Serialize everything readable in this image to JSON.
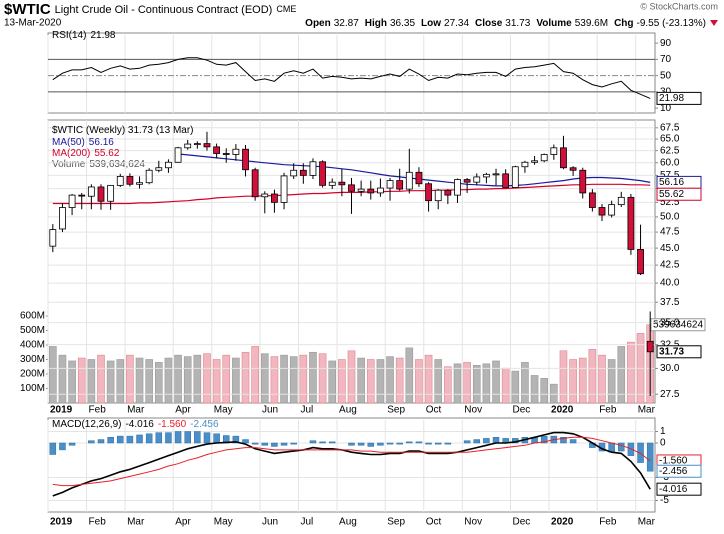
{
  "header": {
    "symbol": "$WTIC",
    "name": "Light Crude Oil - Continuous Contract (EOD)",
    "exchange": "CME",
    "date": "13-Mar-2020",
    "credit": "© StockCharts.com",
    "stats": [
      {
        "label": "Open",
        "value": "32.87"
      },
      {
        "label": "High",
        "value": "36.35"
      },
      {
        "label": "Low",
        "value": "27.34"
      },
      {
        "label": "Close",
        "value": "31.73"
      },
      {
        "label": "Volume",
        "value": "539.6M"
      },
      {
        "label": "Chg",
        "value": "-9.55 (-23.13%)"
      }
    ]
  },
  "chart_data": [
    {
      "type": "line",
      "name": "RSI(14)",
      "color": "#000000",
      "ylim": [
        4,
        100
      ],
      "yticks": [
        10,
        30,
        50,
        70,
        90
      ],
      "bands": [
        30,
        70
      ],
      "midline": 50,
      "values": [
        45,
        53,
        57,
        57,
        60,
        54,
        59,
        62,
        58,
        59,
        63,
        64,
        66,
        70,
        72,
        72,
        69,
        64,
        63,
        66,
        55,
        44,
        46,
        43,
        53,
        56,
        53,
        58,
        47,
        49,
        48,
        46,
        47,
        46,
        49,
        52,
        49,
        58,
        52,
        44,
        48,
        47,
        52,
        51,
        53,
        54,
        54,
        49,
        58,
        60,
        61,
        63,
        65,
        55,
        53,
        45,
        39,
        36,
        40,
        43,
        32,
        27,
        21.98
      ]
    },
    {
      "type": "candlestick",
      "legend_title": "$WTIC (Weekly) 31.73 (13 Mar)",
      "log": true,
      "grid": true,
      "up_color": "#ffffff",
      "down_color": "#d0103a",
      "ylim": [
        26.7,
        69.3
      ],
      "yticks": [
        27.5,
        {
          "value": 30,
          "label": "30.0"
        },
        32.5,
        {
          "value": 35,
          "label": "35.0"
        },
        37.5,
        {
          "value": 40,
          "label": "40.0"
        },
        42.5,
        {
          "value": 45,
          "label": "45.0"
        },
        47.5,
        {
          "value": 50,
          "label": "50.0"
        },
        52.5,
        {
          "value": 55,
          "label": "55.0"
        },
        57.5,
        {
          "value": 60,
          "label": "60.0"
        },
        62.5,
        {
          "value": 65,
          "label": "65.0"
        },
        67.5
      ],
      "categories": [
        "2019",
        null,
        null,
        null,
        "Feb",
        null,
        null,
        null,
        "Mar",
        null,
        null,
        null,
        null,
        "Apr",
        null,
        null,
        null,
        "May",
        null,
        null,
        null,
        null,
        "Jun",
        null,
        null,
        null,
        "Jul",
        null,
        null,
        null,
        "Aug",
        null,
        null,
        null,
        null,
        "Sep",
        null,
        null,
        null,
        "Oct",
        null,
        null,
        null,
        "Nov",
        null,
        null,
        null,
        null,
        "Dec",
        null,
        null,
        null,
        "2020",
        null,
        null,
        null,
        null,
        "Feb",
        null,
        null,
        null,
        "Mar",
        null
      ],
      "open": [
        45.3,
        48.0,
        51.6,
        53.8,
        53.6,
        55.3,
        52.7,
        55.6,
        57.3,
        55.8,
        56.1,
        58.5,
        59.0,
        60.1,
        63.1,
        63.9,
        64.0,
        63.3,
        61.9,
        61.7,
        62.8,
        58.6,
        53.5,
        54.0,
        52.5,
        57.4,
        58.5,
        57.5,
        60.2,
        55.6,
        56.2,
        55.7,
        54.5,
        54.9,
        54.2,
        55.1,
        56.5,
        54.9,
        58.1,
        55.9,
        52.8,
        54.7,
        53.8,
        56.7,
        56.2,
        57.2,
        57.7,
        57.8,
        55.2,
        59.2,
        60.1,
        60.4,
        61.7,
        63.1,
        59.0,
        58.5,
        54.2,
        51.6,
        50.3,
        52.1,
        53.4,
        44.8,
        32.87
      ],
      "high": [
        48.8,
        52.4,
        54.0,
        54.2,
        55.8,
        55.8,
        55.6,
        57.8,
        57.9,
        57.3,
        58.9,
        60.4,
        60.7,
        63.3,
        64.8,
        64.5,
        66.6,
        64.0,
        63.0,
        63.9,
        63.7,
        59.0,
        54.5,
        54.8,
        58.0,
        59.9,
        59.9,
        60.9,
        60.5,
        56.9,
        58.8,
        57.0,
        56.5,
        56.5,
        56.9,
        57.0,
        58.8,
        62.9,
        59.1,
        56.2,
        54.9,
        54.9,
        56.9,
        57.0,
        57.9,
        58.0,
        58.8,
        58.7,
        59.4,
        60.4,
        61.4,
        61.9,
        63.8,
        65.7,
        59.3,
        59.0,
        54.9,
        52.2,
        52.8,
        54.4,
        54.0,
        48.7,
        36.35
      ],
      "low": [
        44.4,
        47.5,
        50.3,
        51.3,
        51.3,
        51.2,
        51.2,
        55.3,
        55.4,
        55.0,
        55.8,
        58.1,
        58.0,
        60.0,
        62.7,
        62.9,
        62.5,
        60.9,
        60.0,
        60.4,
        57.3,
        52.8,
        50.6,
        50.7,
        51.3,
        56.8,
        55.9,
        56.8,
        55.2,
        54.9,
        53.6,
        50.5,
        53.6,
        53.0,
        53.5,
        52.8,
        54.6,
        54.1,
        55.3,
        50.9,
        51.3,
        52.2,
        52.4,
        54.2,
        55.6,
        56.0,
        55.6,
        55.2,
        55.2,
        58.0,
        59.6,
        60.1,
        60.6,
        58.7,
        57.4,
        53.2,
        50.9,
        49.3,
        49.9,
        51.7,
        44.0,
        41.1,
        27.34
      ],
      "close": [
        47.9,
        51.6,
        53.8,
        53.7,
        55.3,
        52.7,
        55.6,
        57.3,
        55.8,
        56.1,
        58.5,
        59.0,
        60.1,
        63.1,
        63.9,
        64.0,
        63.3,
        61.9,
        61.7,
        62.8,
        58.6,
        53.5,
        54.0,
        52.5,
        57.4,
        58.5,
        57.5,
        60.2,
        55.6,
        56.2,
        55.7,
        54.5,
        54.9,
        54.2,
        55.1,
        56.5,
        54.9,
        58.1,
        55.9,
        52.8,
        54.7,
        53.8,
        56.7,
        56.2,
        57.2,
        57.7,
        57.8,
        55.2,
        59.2,
        60.1,
        60.4,
        61.7,
        63.1,
        59.0,
        58.5,
        54.2,
        51.6,
        50.3,
        52.1,
        53.4,
        44.8,
        41.28,
        31.73
      ],
      "overlays": [
        {
          "name": "MA(50)",
          "color": "#1a1a9c",
          "values": [
            null,
            null,
            null,
            null,
            null,
            null,
            null,
            null,
            null,
            null,
            null,
            null,
            null,
            61.8,
            61.6,
            61.4,
            61.2,
            61.0,
            60.8,
            60.6,
            60.4,
            60.2,
            60.0,
            59.8,
            59.6,
            59.5,
            59.4,
            59.3,
            59.2,
            59.0,
            58.8,
            58.6,
            58.3,
            58.0,
            57.7,
            57.4,
            57.2,
            57.0,
            56.8,
            56.6,
            56.4,
            56.2,
            56.0,
            55.8,
            55.7,
            55.6,
            55.5,
            55.5,
            55.6,
            55.7,
            55.9,
            56.1,
            56.3,
            56.5,
            56.8,
            57.0,
            57.1,
            57.1,
            57.0,
            56.9,
            56.7,
            56.5,
            56.16
          ]
        },
        {
          "name": "MA(200)",
          "color": "#d4002a",
          "values": [
            52.3,
            52.3,
            52.3,
            52.3,
            52.3,
            52.3,
            52.3,
            52.3,
            52.3,
            52.4,
            52.4,
            52.5,
            52.6,
            52.7,
            52.8,
            53.0,
            53.1,
            53.3,
            53.4,
            53.5,
            53.6,
            53.6,
            53.7,
            53.7,
            53.8,
            53.9,
            54.0,
            54.1,
            54.1,
            54.2,
            54.3,
            54.3,
            54.3,
            54.4,
            54.4,
            54.5,
            54.5,
            54.6,
            54.6,
            54.6,
            54.7,
            54.7,
            54.8,
            54.8,
            54.9,
            54.9,
            55.0,
            55.0,
            55.1,
            55.2,
            55.3,
            55.4,
            55.5,
            55.6,
            55.7,
            55.7,
            55.8,
            55.8,
            55.8,
            55.8,
            55.7,
            55.7,
            55.62
          ]
        }
      ]
    },
    {
      "type": "bar",
      "name": "Volume",
      "legend_value": "539,634,624",
      "last_label": "539634624",
      "up_color": "#b4b4b4",
      "down_color": "#f2b6c0",
      "ylim": [
        0,
        600
      ],
      "yticks": [
        {
          "value": 100,
          "label": "100M"
        },
        {
          "value": 200,
          "label": "200M"
        },
        {
          "value": 300,
          "label": "300M"
        },
        {
          "value": 400,
          "label": "400M"
        },
        {
          "value": 500,
          "label": "500M"
        },
        {
          "value": 600,
          "label": "600M"
        }
      ],
      "values": [
        390,
        330,
        290,
        310,
        300,
        330,
        290,
        300,
        330,
        310,
        300,
        280,
        310,
        330,
        320,
        330,
        340,
        300,
        330,
        310,
        350,
        390,
        340,
        320,
        330,
        320,
        330,
        350,
        340,
        290,
        300,
        360,
        310,
        300,
        300,
        320,
        310,
        380,
        300,
        330,
        300,
        250,
        270,
        280,
        260,
        270,
        290,
        240,
        220,
        280,
        190,
        170,
        130,
        360,
        300,
        310,
        370,
        330,
        300,
        390,
        420,
        480,
        539.634624
      ]
    },
    {
      "type": "macd",
      "title": "MACD(12,26,9)",
      "grid": true,
      "ylim": [
        -6,
        2
      ],
      "yticks": [
        1,
        0,
        -3,
        -5
      ],
      "lines": [
        {
          "color": "#000000",
          "last_label": "-4.016",
          "values": [
            -4.6,
            -4.3,
            -3.9,
            -3.6,
            -3.3,
            -3.1,
            -2.8,
            -2.5,
            -2.3,
            -2.0,
            -1.7,
            -1.4,
            -1.1,
            -0.8,
            -0.5,
            -0.3,
            -0.1,
            0.0,
            0.05,
            0.1,
            -0.1,
            -0.5,
            -0.7,
            -0.9,
            -0.8,
            -0.7,
            -0.6,
            -0.4,
            -0.5,
            -0.5,
            -0.6,
            -0.8,
            -0.9,
            -1.0,
            -1.0,
            -0.9,
            -0.9,
            -0.7,
            -0.7,
            -0.9,
            -0.9,
            -0.9,
            -0.8,
            -0.6,
            -0.4,
            -0.2,
            0.0,
            0.0,
            0.1,
            0.3,
            0.5,
            0.7,
            0.9,
            0.9,
            0.8,
            0.5,
            0.0,
            -0.5,
            -0.8,
            -0.9,
            -1.6,
            -2.6,
            -4.016
          ]
        },
        {
          "color": "#e8202a",
          "last_label": "-1.560",
          "values": [
            -3.6,
            -3.7,
            -3.7,
            -3.6,
            -3.5,
            -3.4,
            -3.3,
            -3.1,
            -2.9,
            -2.7,
            -2.5,
            -2.3,
            -2.0,
            -1.8,
            -1.5,
            -1.3,
            -1.0,
            -0.8,
            -0.6,
            -0.5,
            -0.4,
            -0.4,
            -0.5,
            -0.6,
            -0.6,
            -0.6,
            -0.6,
            -0.6,
            -0.6,
            -0.6,
            -0.6,
            -0.6,
            -0.7,
            -0.7,
            -0.8,
            -0.8,
            -0.8,
            -0.8,
            -0.8,
            -0.8,
            -0.8,
            -0.8,
            -0.8,
            -0.8,
            -0.7,
            -0.6,
            -0.5,
            -0.4,
            -0.3,
            -0.2,
            0.0,
            0.1,
            0.3,
            0.4,
            0.5,
            0.5,
            0.4,
            0.2,
            0.0,
            -0.2,
            -0.5,
            -0.9,
            -1.56
          ]
        }
      ],
      "histogram": {
        "color": "#4a8fc8",
        "last_label": "-2.456",
        "values": [
          -1.0,
          -0.6,
          -0.2,
          0.0,
          0.2,
          0.3,
          0.5,
          0.6,
          0.6,
          0.7,
          0.8,
          0.9,
          0.9,
          1.0,
          1.0,
          1.0,
          0.9,
          0.8,
          0.65,
          0.6,
          0.3,
          -0.1,
          -0.2,
          -0.3,
          -0.2,
          -0.1,
          0.0,
          0.2,
          0.1,
          0.1,
          0.0,
          -0.2,
          -0.2,
          -0.3,
          -0.2,
          -0.1,
          -0.1,
          0.1,
          0.1,
          -0.1,
          -0.1,
          -0.1,
          0.0,
          0.2,
          0.3,
          0.4,
          0.5,
          0.4,
          0.4,
          0.5,
          0.5,
          0.6,
          0.6,
          0.5,
          0.3,
          0.0,
          -0.4,
          -0.7,
          -0.8,
          -0.7,
          -1.1,
          -1.7,
          -2.456
        ]
      }
    }
  ]
}
